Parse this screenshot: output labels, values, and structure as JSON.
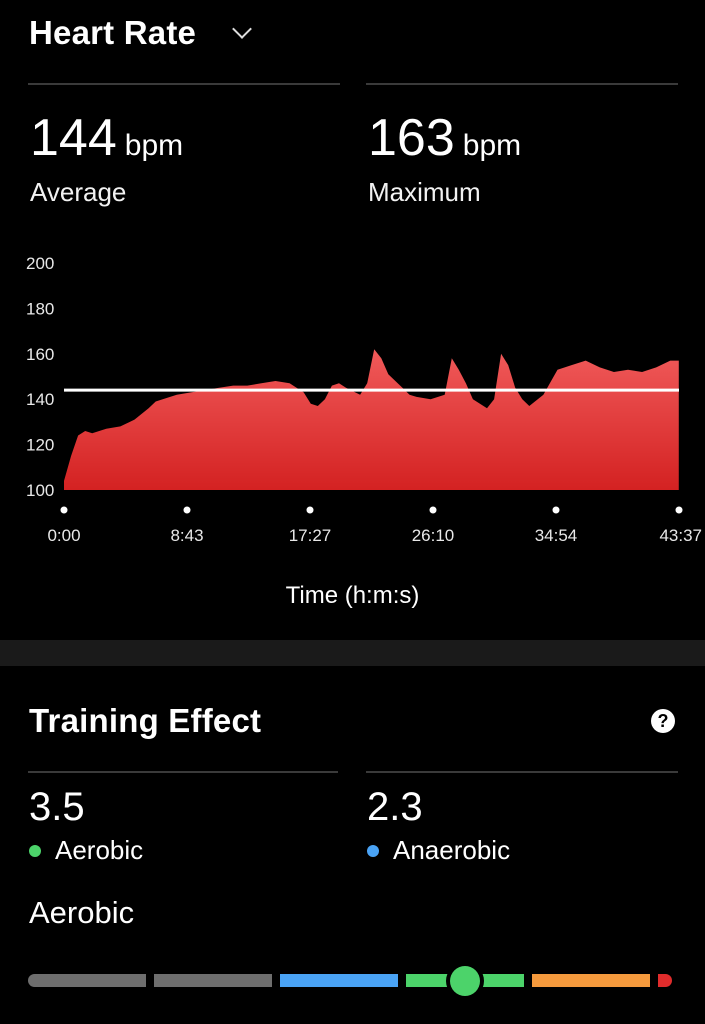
{
  "heart_rate": {
    "title": "Heart Rate",
    "average": {
      "value": "144",
      "unit": "bpm",
      "label": "Average"
    },
    "maximum": {
      "value": "163",
      "unit": "bpm",
      "label": "Maximum"
    }
  },
  "chart_data": {
    "type": "area",
    "xlabel": "Time (h:m:s)",
    "ylabel": "",
    "x_tick_labels": [
      "0:00",
      "8:43",
      "17:27",
      "26:10",
      "34:54",
      "43:37"
    ],
    "y_ticks": [
      100,
      120,
      140,
      160,
      180,
      200
    ],
    "ylim": [
      100,
      200
    ],
    "xlim_seconds": [
      0,
      2617
    ],
    "average_line": 144,
    "series": [
      {
        "x_minutes": [
          0,
          0.5,
          1,
          1.5,
          2,
          3,
          4,
          5,
          6,
          6.5,
          7,
          8,
          9,
          10,
          11,
          12,
          13,
          14,
          15,
          16,
          17,
          17.5,
          18,
          18.5,
          19,
          19.5,
          20,
          21,
          21.5,
          22,
          22.5,
          23,
          24,
          24.5,
          25,
          26,
          27,
          27.5,
          28,
          28.5,
          29,
          30,
          30.5,
          31,
          31.5,
          32,
          32.5,
          33,
          34,
          35,
          36,
          37,
          38,
          39,
          40,
          41,
          42,
          43,
          43.6
        ],
        "values": [
          104,
          115,
          124,
          126,
          125,
          127,
          128,
          131,
          136,
          139,
          140,
          142,
          143,
          144,
          145,
          146,
          146,
          147,
          148,
          147,
          143,
          138,
          137,
          140,
          146,
          147,
          145,
          142,
          147,
          162,
          158,
          151,
          145,
          142,
          141,
          140,
          142,
          158,
          153,
          147,
          140,
          136,
          140,
          160,
          155,
          145,
          140,
          137,
          142,
          153,
          155,
          157,
          154,
          152,
          153,
          152,
          154,
          157,
          157
        ]
      }
    ]
  },
  "training_effect": {
    "title": "Training Effect",
    "aerobic": {
      "value": "3.5",
      "label": "Aerobic",
      "color": "#4cd36a"
    },
    "anaerobic": {
      "value": "2.3",
      "label": "Anaerobic",
      "color": "#4aa3f5"
    },
    "scale_title": "Aerobic",
    "scale_level": 3.5,
    "scale_segments": [
      {
        "color": "#6e6e6e"
      },
      {
        "color": "#6e6e6e"
      },
      {
        "color": "#4aa3f5"
      },
      {
        "color": "#4cd36a"
      },
      {
        "color": "#f59a3d"
      },
      {
        "color": "#e02c2c"
      }
    ]
  },
  "icons": {
    "help": "?",
    "dropdown": "chevron-down-icon"
  }
}
